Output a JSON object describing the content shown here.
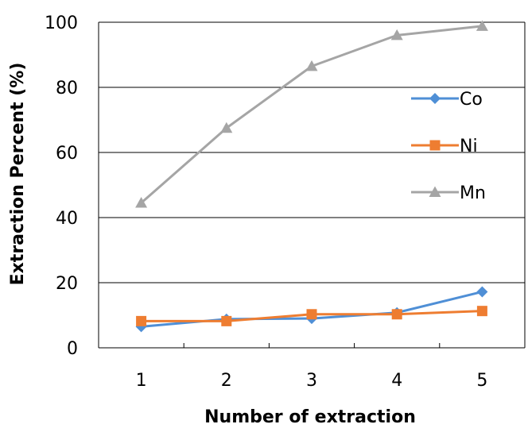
{
  "chart_data": {
    "type": "line",
    "xlabel": "Number of extraction",
    "ylabel": "Extraction Percent (%)",
    "ylim": [
      0,
      100
    ],
    "yticks": [
      0,
      20,
      40,
      60,
      80,
      100
    ],
    "categories": [
      "1",
      "2",
      "3",
      "4",
      "5"
    ],
    "grid": "horizontal",
    "legend_position": "right",
    "series": [
      {
        "name": "Co",
        "color": "#4f8fd6",
        "marker": "diamond",
        "values": [
          6.5,
          8.8,
          9.0,
          10.8,
          17.2
        ]
      },
      {
        "name": "Ni",
        "color": "#ee7d31",
        "marker": "square",
        "values": [
          8.2,
          8.2,
          10.3,
          10.3,
          11.3
        ]
      },
      {
        "name": "Mn",
        "color": "#a5a5a5",
        "marker": "triangle",
        "values": [
          44.5,
          67.5,
          86.5,
          96.0,
          98.8
        ]
      }
    ]
  }
}
